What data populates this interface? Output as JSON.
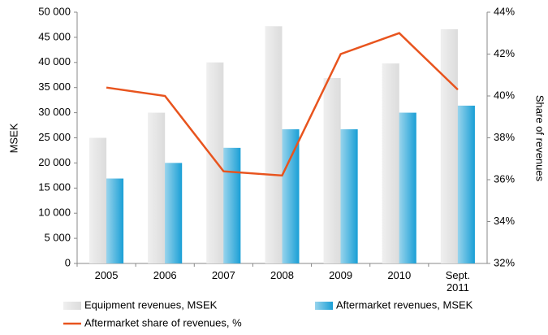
{
  "chart_data": {
    "type": "bar_line",
    "categories": [
      "2005",
      "2006",
      "2007",
      "2008",
      "2009",
      "2010",
      "Sept. 2011"
    ],
    "y_label": "MSEK",
    "y2_label": "Share of revenues",
    "ylim": [
      0,
      50000
    ],
    "yticks": [
      0,
      {
        "value": 5000,
        "label": "5 000"
      },
      {
        "value": 10000,
        "label": "10 000"
      },
      {
        "value": 15000,
        "label": "15 000"
      },
      {
        "value": 20000,
        "label": "20 000"
      },
      {
        "value": 25000,
        "label": "25 000"
      },
      {
        "value": 30000,
        "label": "30 000"
      },
      {
        "value": 35000,
        "label": "35 000"
      },
      {
        "value": 40000,
        "label": "40 000"
      },
      {
        "value": 45000,
        "label": "45 000"
      },
      {
        "value": 50000,
        "label": "50 000"
      }
    ],
    "y2lim": [
      32,
      44
    ],
    "y2ticks": [
      {
        "value": 32,
        "label": "32%"
      },
      {
        "value": 34,
        "label": "34%"
      },
      {
        "value": 36,
        "label": "36%"
      },
      {
        "value": 38,
        "label": "38%"
      },
      {
        "value": 40,
        "label": "40%"
      },
      {
        "value": 42,
        "label": "42%"
      },
      {
        "value": 44,
        "label": "44%"
      }
    ],
    "series": [
      {
        "name": "Equipment revenues, MSEK",
        "type": "bar",
        "color": "#dcdcdc",
        "values": [
          25000,
          30000,
          40000,
          47200,
          36900,
          39800,
          46600
        ]
      },
      {
        "name": "Aftermarket revenues, MSEK",
        "type": "bar",
        "color": "#1a9fd6",
        "values": [
          16900,
          20000,
          23000,
          26700,
          26700,
          30000,
          31400
        ]
      },
      {
        "name": "Aftermarket share of revenues, %",
        "type": "line",
        "axis": "y2",
        "color": "#e8541e",
        "values": [
          40.4,
          40.0,
          36.4,
          36.2,
          42.0,
          43.0,
          40.3
        ]
      }
    ]
  }
}
